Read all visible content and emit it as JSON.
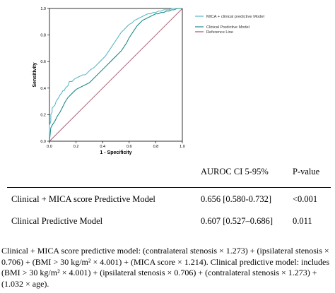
{
  "chart_data": {
    "type": "line",
    "title": "",
    "xlabel": "1 - Specificity",
    "ylabel": "Sensitivity",
    "xlim": [
      0,
      1
    ],
    "ylim": [
      0,
      1
    ],
    "xticks": [
      "0.0",
      "0.2",
      "0.4",
      "0.6",
      "0.8",
      "1.0"
    ],
    "yticks": [
      "0.0",
      "0.2",
      "0.4",
      "0.6",
      "0.8",
      "1.0"
    ],
    "grid": false,
    "legend_position": "top-right",
    "series": [
      {
        "name": "MICA + clinical predictive Model",
        "color": "#5bb8c4",
        "x": [
          0.0,
          0.0,
          0.01,
          0.01,
          0.02,
          0.02,
          0.04,
          0.05,
          0.07,
          0.08,
          0.09,
          0.1,
          0.11,
          0.12,
          0.14,
          0.15,
          0.17,
          0.19,
          0.21,
          0.23,
          0.25,
          0.27,
          0.29,
          0.31,
          0.33,
          0.35,
          0.37,
          0.38,
          0.4,
          0.42,
          0.44,
          0.46,
          0.48,
          0.5,
          0.52,
          0.54,
          0.56,
          0.58,
          0.6,
          0.62,
          0.64,
          0.66,
          0.68,
          0.7,
          0.72,
          0.74,
          0.76,
          0.78,
          0.8,
          0.82,
          0.84,
          0.86,
          0.88,
          0.9,
          0.92,
          0.94,
          0.96,
          0.98,
          1.0
        ],
        "y": [
          0.0,
          0.12,
          0.15,
          0.2,
          0.22,
          0.25,
          0.27,
          0.3,
          0.33,
          0.35,
          0.36,
          0.38,
          0.38,
          0.4,
          0.42,
          0.45,
          0.45,
          0.47,
          0.48,
          0.49,
          0.5,
          0.5,
          0.52,
          0.54,
          0.55,
          0.57,
          0.59,
          0.6,
          0.62,
          0.64,
          0.67,
          0.7,
          0.73,
          0.76,
          0.79,
          0.82,
          0.84,
          0.86,
          0.88,
          0.89,
          0.91,
          0.92,
          0.93,
          0.94,
          0.95,
          0.96,
          0.96,
          0.97,
          0.97,
          0.98,
          0.98,
          0.99,
          0.99,
          0.99,
          1.0,
          1.0,
          1.0,
          1.0,
          1.0
        ]
      },
      {
        "name": "Clinical Predictive Model",
        "color": "#1f8a8a",
        "x": [
          0.0,
          0.01,
          0.02,
          0.04,
          0.06,
          0.08,
          0.1,
          0.12,
          0.14,
          0.16,
          0.18,
          0.2,
          0.22,
          0.24,
          0.26,
          0.28,
          0.3,
          0.32,
          0.34,
          0.36,
          0.38,
          0.4,
          0.42,
          0.44,
          0.46,
          0.48,
          0.5,
          0.52,
          0.54,
          0.56,
          0.58,
          0.6,
          0.62,
          0.64,
          0.66,
          0.68,
          0.7,
          0.72,
          0.74,
          0.76,
          0.78,
          0.8,
          0.82,
          0.84,
          0.86,
          0.88,
          0.9,
          0.92,
          0.94,
          0.96,
          0.98,
          1.0
        ],
        "y": [
          0.0,
          0.1,
          0.12,
          0.15,
          0.19,
          0.22,
          0.26,
          0.3,
          0.33,
          0.35,
          0.37,
          0.39,
          0.4,
          0.41,
          0.42,
          0.43,
          0.44,
          0.46,
          0.48,
          0.5,
          0.52,
          0.54,
          0.56,
          0.58,
          0.6,
          0.62,
          0.64,
          0.66,
          0.68,
          0.71,
          0.74,
          0.78,
          0.81,
          0.84,
          0.87,
          0.89,
          0.91,
          0.92,
          0.93,
          0.94,
          0.95,
          0.96,
          0.96,
          0.97,
          0.97,
          0.98,
          0.98,
          0.99,
          0.99,
          1.0,
          1.0,
          1.0
        ]
      },
      {
        "name": "Reference Line",
        "color": "#a8546a",
        "x": [
          0,
          1
        ],
        "y": [
          0,
          1
        ]
      }
    ]
  },
  "table": {
    "headers": [
      "",
      "AUROC CI 5-95%",
      "P-value"
    ],
    "rows": [
      [
        "Clinical + MICA score Predictive Model",
        "0.656 [0.580-0.732]",
        "<0.001"
      ],
      [
        "Clinical Predictive Model",
        "0.607 [0.527–0.686]",
        "0.011"
      ]
    ]
  },
  "footnote": "Clinical + MICA score predictive model: (contralateral stenosis × 1.273) + (ipsilateral stenosis × 0.706) + (BMI > 30 kg/m² × 4.001) + (MICA score × 1.214). Clinical predictive model: includes (BMI > 30 kg/m² × 4.001) + (ipsilateral stenosis × 0.706) + (contralateral stenosis × 1.273) + (1.032 × age)."
}
